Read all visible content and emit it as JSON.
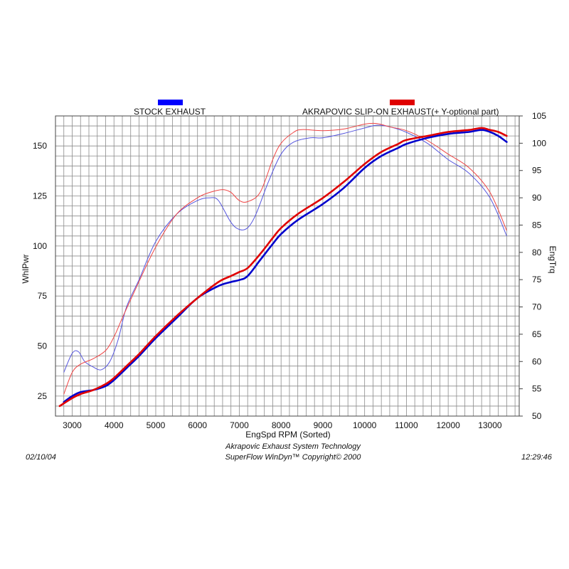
{
  "chart_data": {
    "type": "line",
    "x_label": "EngSpd  RPM   (Sorted)",
    "y_left_label": "WhlPwr",
    "y_right_label": "EngTrq",
    "x_range": [
      2600,
      13700
    ],
    "y_left_range": [
      15,
      165
    ],
    "y_right_range": [
      50,
      105
    ],
    "x_ticks": [
      3000,
      4000,
      5000,
      6000,
      7000,
      8000,
      9000,
      10000,
      11000,
      12000,
      13000
    ],
    "y_left_ticks": [
      25,
      50,
      75,
      100,
      125,
      150
    ],
    "y_right_ticks": [
      50,
      55,
      60,
      65,
      70,
      75,
      80,
      85,
      90,
      95,
      100,
      105
    ],
    "grid": true,
    "legend_position": "top",
    "series": [
      {
        "name": "STOCK EXHAUST",
        "color": "#0000cc",
        "power": {
          "x": [
            2800,
            3000,
            3200,
            3500,
            3800,
            4000,
            4300,
            4600,
            5000,
            5500,
            6000,
            6500,
            6800,
            7000,
            7200,
            7500,
            7800,
            8000,
            8400,
            9000,
            9500,
            10000,
            10400,
            10800,
            11000,
            11500,
            12000,
            12500,
            12800,
            13000,
            13200,
            13400
          ],
          "y": [
            22,
            25,
            27,
            28,
            30,
            33,
            39,
            45,
            54,
            64,
            74,
            80,
            82,
            83,
            85,
            93,
            101,
            106,
            113,
            121,
            129,
            139,
            145,
            149,
            151,
            154,
            156,
            157,
            158,
            157,
            155,
            152
          ]
        },
        "torque": {
          "x": [
            2800,
            3000,
            3150,
            3300,
            3500,
            3700,
            3900,
            4100,
            4300,
            4600,
            5000,
            5500,
            6000,
            6300,
            6500,
            6800,
            7000,
            7200,
            7400,
            7700,
            8000,
            8300,
            8700,
            9000,
            9500,
            10000,
            10300,
            10600,
            11000,
            11500,
            12000,
            12500,
            13000,
            13400
          ],
          "y": [
            58,
            61.5,
            61.8,
            60,
            59,
            58.5,
            60,
            64,
            70,
            75,
            82,
            87,
            89.5,
            90,
            89.5,
            85.5,
            84.2,
            84.5,
            87,
            93,
            98,
            100.2,
            101,
            101,
            101.8,
            102.8,
            103.3,
            103,
            102,
            100,
            97,
            94.5,
            90,
            83
          ]
        }
      },
      {
        "name": "AKRAPOVIC SLIP-ON EXHAUST(+ Y-optional part)",
        "color": "#e00000",
        "power": {
          "x": [
            2700,
            3000,
            3200,
            3500,
            3800,
            4000,
            4300,
            4600,
            5000,
            5500,
            6000,
            6500,
            6800,
            7000,
            7200,
            7500,
            7800,
            8000,
            8400,
            9000,
            9500,
            10000,
            10400,
            10800,
            11000,
            11500,
            12000,
            12500,
            12800,
            13000,
            13200,
            13400
          ],
          "y": [
            20,
            24,
            26,
            28,
            31,
            34,
            40,
            46,
            55,
            65,
            74,
            82,
            85,
            87,
            89,
            96,
            104,
            109,
            116,
            124,
            132,
            141,
            147,
            151,
            153,
            155,
            157,
            158,
            159,
            158,
            157,
            155
          ]
        },
        "torque": {
          "x": [
            2800,
            3000,
            3200,
            3500,
            3800,
            4000,
            4200,
            4500,
            5000,
            5500,
            6000,
            6300,
            6600,
            6800,
            7000,
            7200,
            7500,
            7800,
            8000,
            8300,
            8500,
            9000,
            9500,
            10000,
            10300,
            10600,
            11000,
            11500,
            12000,
            12500,
            13000,
            13400
          ],
          "y": [
            54,
            58,
            59.5,
            60.5,
            62,
            64.5,
            68,
            73,
            81,
            87,
            90,
            91,
            91.5,
            91,
            89.5,
            89.3,
            91,
            97,
            100,
            102,
            102.5,
            102.3,
            102.6,
            103.5,
            103.6,
            103,
            102.3,
            100.5,
            98,
            95.5,
            91,
            84
          ]
        }
      }
    ]
  },
  "footer": {
    "date": "02/10/04",
    "line1": "Akrapovic Exhaust System Technology",
    "line2": "SuperFlow WinDyn™   Copyright© 2000",
    "time": "12:29:46"
  }
}
